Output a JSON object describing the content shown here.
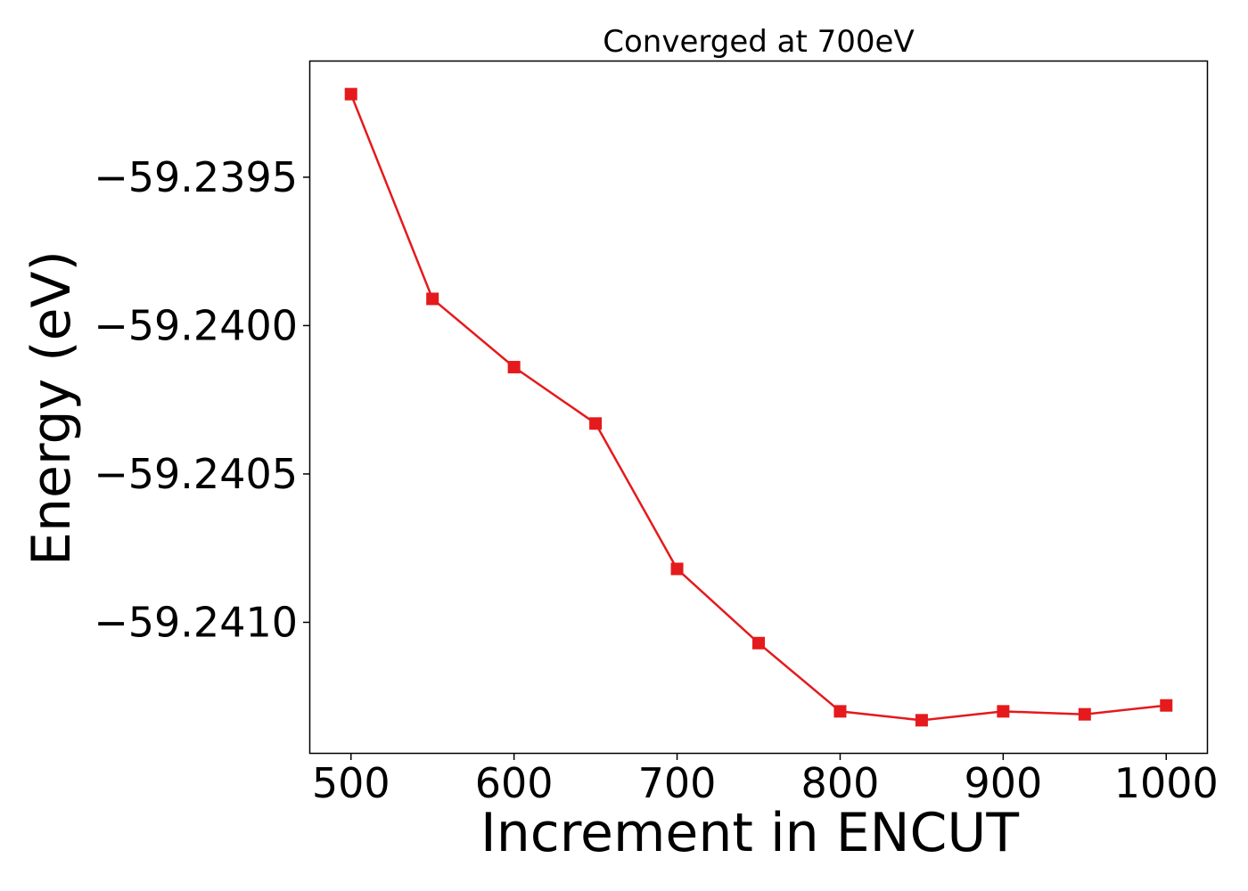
{
  "chart_data": {
    "type": "line",
    "title": "Converged at 700eV",
    "xlabel": "Increment in ENCUT",
    "ylabel": "Energy (eV)",
    "xlim": [
      475,
      1025
    ],
    "ylim": [
      -59.24144,
      -59.23911
    ],
    "x_ticks": [
      500,
      600,
      700,
      800,
      900,
      1000
    ],
    "x_tick_labels": [
      "500",
      "600",
      "700",
      "800",
      "900",
      "1000"
    ],
    "y_ticks": [
      -59.2395,
      -59.24,
      -59.2405,
      -59.241
    ],
    "y_tick_labels": [
      "−59.2395",
      "−59.2400",
      "−59.2405",
      "−59.2410"
    ],
    "grid": false,
    "series": [
      {
        "color": "#e41a1c",
        "marker": "square",
        "x": [
          500,
          550,
          600,
          650,
          700,
          750,
          800,
          850,
          900,
          950,
          1000
        ],
        "y": [
          -59.23922,
          -59.23991,
          -59.24014,
          -59.24033,
          -59.24082,
          -59.24107,
          -59.2413,
          -59.24133,
          -59.2413,
          -59.24131,
          -59.24128
        ]
      }
    ]
  }
}
